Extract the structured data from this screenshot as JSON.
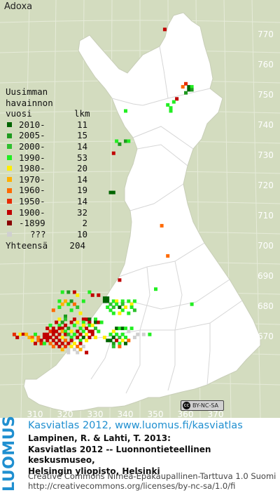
{
  "title": "Adoxa",
  "legend": {
    "header": [
      "Uusimman",
      "havainnon",
      "vuosi"
    ],
    "count_header": "lkm",
    "rows": [
      {
        "label": "2010-",
        "count": "11",
        "color": "#006400"
      },
      {
        "label": "2005-",
        "count": "15",
        "color": "#1f9a1f"
      },
      {
        "label": "2000-",
        "count": "14",
        "color": "#2fc02f"
      },
      {
        "label": "1990-",
        "count": "53",
        "color": "#22ee22"
      },
      {
        "label": "1980-",
        "count": "20",
        "color": "#ffee00"
      },
      {
        "label": "1970-",
        "count": "14",
        "color": "#ffb000"
      },
      {
        "label": "1960-",
        "count": "19",
        "color": "#ff6a00"
      },
      {
        "label": "1950-",
        "count": "14",
        "color": "#e82a00"
      },
      {
        "label": "1900-",
        "count": "32",
        "color": "#c00000"
      },
      {
        "label": "-1899",
        "count": "2",
        "color": "#8a0000"
      },
      {
        "label": "???",
        "count": "10",
        "color": "#d0d0d0"
      }
    ],
    "total_label": "Yhteensä",
    "total_count": "204"
  },
  "y_ticks": [
    "770",
    "760",
    "750",
    "740",
    "730",
    "720",
    "710",
    "700",
    "690",
    "680",
    "670"
  ],
  "x_ticks": [
    "310",
    "320",
    "330",
    "340",
    "350",
    "360",
    "370"
  ],
  "license_badge": "BY-NC-SA",
  "footer": {
    "logo": "LUOMUS",
    "line1": "Kasviatlas 2012, www.luomus.fi/kasviatlas",
    "line2": "Lampinen, R. & Lahti, T. 2013:",
    "line3": "Kasviatlas 2012 -- Luonnontieteellinen keskusmuseo,",
    "line4": "Helsingin yliopisto, Helsinki",
    "line5": "Creative Commons Nimeä-Epäkaupallinen-Tarttuva 1.0 Suomi",
    "line6": "http://creativecommons.org/licenses/by-nc-sa/1.0/fi"
  },
  "observations": [
    {
      "e": 353,
      "n": 772,
      "c": "#c00000"
    },
    {
      "e": 359,
      "n": 753,
      "c": "#ff6a00"
    },
    {
      "e": 360,
      "n": 754,
      "c": "#e82a00"
    },
    {
      "e": 361,
      "n": 753,
      "c": "#006400"
    },
    {
      "e": 362,
      "n": 753,
      "c": "#22ee22"
    },
    {
      "e": 361,
      "n": 752,
      "c": "#006400"
    },
    {
      "e": 362,
      "n": 752,
      "c": "#1f9a1f"
    },
    {
      "e": 360,
      "n": 751,
      "c": "#1f9a1f"
    },
    {
      "e": 357,
      "n": 749,
      "c": "#c00000"
    },
    {
      "e": 356,
      "n": 748,
      "c": "#22ee22"
    },
    {
      "e": 354,
      "n": 747,
      "c": "#22ee22"
    },
    {
      "e": 355,
      "n": 746,
      "c": "#22ee22"
    },
    {
      "e": 355,
      "n": 745,
      "c": "#22ee22"
    },
    {
      "e": 340,
      "n": 745,
      "c": "#22ee22"
    },
    {
      "e": 337,
      "n": 735,
      "c": "#22ee22"
    },
    {
      "e": 340,
      "n": 735,
      "c": "#1f9a1f"
    },
    {
      "e": 341,
      "n": 735,
      "c": "#22ee22"
    },
    {
      "e": 338,
      "n": 734,
      "c": "#1f9a1f"
    },
    {
      "e": 336,
      "n": 731,
      "c": "#c00000"
    },
    {
      "e": 335,
      "n": 718,
      "c": "#006400"
    },
    {
      "e": 336,
      "n": 718,
      "c": "#006400"
    },
    {
      "e": 352,
      "n": 707,
      "c": "#ff6a00"
    },
    {
      "e": 354,
      "n": 697,
      "c": "#ff6a00"
    },
    {
      "e": 338,
      "n": 689,
      "c": "#c00000"
    },
    {
      "e": 350,
      "n": 686,
      "c": "#22ee22"
    },
    {
      "e": 319,
      "n": 685,
      "c": "#22ee22"
    },
    {
      "e": 321,
      "n": 685,
      "c": "#1f9a1f"
    },
    {
      "e": 323,
      "n": 685,
      "c": "#c00000"
    },
    {
      "e": 324,
      "n": 684,
      "c": "#ffee00"
    },
    {
      "e": 328,
      "n": 685,
      "c": "#22ee22"
    },
    {
      "e": 329,
      "n": 684,
      "c": "#c00000"
    },
    {
      "e": 331,
      "n": 684,
      "c": "#c00000"
    },
    {
      "e": 333,
      "n": 683,
      "c": "#006400"
    },
    {
      "e": 334,
      "n": 683,
      "c": "#006400"
    },
    {
      "e": 333,
      "n": 682,
      "c": "#006400"
    },
    {
      "e": 334,
      "n": 682,
      "c": "#006400"
    },
    {
      "e": 318,
      "n": 682,
      "c": "#22ee22"
    },
    {
      "e": 320,
      "n": 682,
      "c": "#ffb000"
    },
    {
      "e": 322,
      "n": 682,
      "c": "#1f9a1f"
    },
    {
      "e": 326,
      "n": 682,
      "c": "#22ee22"
    },
    {
      "e": 336,
      "n": 682,
      "c": "#22ee22"
    },
    {
      "e": 337,
      "n": 682,
      "c": "#ffee00"
    },
    {
      "e": 339,
      "n": 682,
      "c": "#22ee22"
    },
    {
      "e": 341,
      "n": 682,
      "c": "#22ee22"
    },
    {
      "e": 343,
      "n": 682,
      "c": "#22ee22"
    },
    {
      "e": 319,
      "n": 681,
      "c": "#ffb000"
    },
    {
      "e": 321,
      "n": 681,
      "c": "#22ee22"
    },
    {
      "e": 323,
      "n": 681,
      "c": "#ff6a00"
    },
    {
      "e": 335,
      "n": 681,
      "c": "#2fc02f"
    },
    {
      "e": 337,
      "n": 681,
      "c": "#22ee22"
    },
    {
      "e": 339,
      "n": 681,
      "c": "#2fc02f"
    },
    {
      "e": 342,
      "n": 681,
      "c": "#ffee00"
    },
    {
      "e": 362,
      "n": 681,
      "c": "#22ee22"
    },
    {
      "e": 318,
      "n": 680,
      "c": "#22ee22"
    },
    {
      "e": 324,
      "n": 680,
      "c": "#2fc02f"
    },
    {
      "e": 334,
      "n": 680,
      "c": "#22ee22"
    },
    {
      "e": 336,
      "n": 680,
      "c": "#2fc02f"
    },
    {
      "e": 338,
      "n": 680,
      "c": "#006400"
    },
    {
      "e": 340,
      "n": 680,
      "c": "#ffee00"
    },
    {
      "e": 342,
      "n": 680,
      "c": "#22ee22"
    },
    {
      "e": 316,
      "n": 679,
      "c": "#ff6a00"
    },
    {
      "e": 322,
      "n": 679,
      "c": "#22ee22"
    },
    {
      "e": 335,
      "n": 679,
      "c": "#22ee22"
    },
    {
      "e": 339,
      "n": 679,
      "c": "#22ee22"
    },
    {
      "e": 343,
      "n": 679,
      "c": "#2fc02f"
    },
    {
      "e": 325,
      "n": 678,
      "c": "#ffee00"
    },
    {
      "e": 336,
      "n": 678,
      "c": "#22ee22"
    },
    {
      "e": 338,
      "n": 678,
      "c": "#ffee00"
    },
    {
      "e": 341,
      "n": 678,
      "c": "#22ee22"
    },
    {
      "e": 320,
      "n": 677,
      "c": "#1f9a1f"
    },
    {
      "e": 318,
      "n": 676,
      "c": "#ffee00"
    },
    {
      "e": 320,
      "n": 676,
      "c": "#2fc02f"
    },
    {
      "e": 323,
      "n": 676,
      "c": "#c00000"
    },
    {
      "e": 326,
      "n": 676,
      "c": "#c00000"
    },
    {
      "e": 327,
      "n": 676,
      "c": "#c00000"
    },
    {
      "e": 328,
      "n": 676,
      "c": "#006400"
    },
    {
      "e": 330,
      "n": 676,
      "c": "#22ee22"
    },
    {
      "e": 317,
      "n": 675,
      "c": "#c00000"
    },
    {
      "e": 319,
      "n": 675,
      "c": "#1f9a1f"
    },
    {
      "e": 322,
      "n": 675,
      "c": "#c00000"
    },
    {
      "e": 324,
      "n": 675,
      "c": "#ffee00"
    },
    {
      "e": 326,
      "n": 675,
      "c": "#22ee22"
    },
    {
      "e": 328,
      "n": 675,
      "c": "#c00000"
    },
    {
      "e": 330,
      "n": 675,
      "c": "#006400"
    },
    {
      "e": 331,
      "n": 675,
      "c": "#c00000"
    },
    {
      "e": 332,
      "n": 675,
      "c": "#22ee22"
    },
    {
      "e": 315,
      "n": 674,
      "c": "#22ee22"
    },
    {
      "e": 318,
      "n": 674,
      "c": "#22ee22"
    },
    {
      "e": 320,
      "n": 674,
      "c": "#c00000"
    },
    {
      "e": 323,
      "n": 674,
      "c": "#22ee22"
    },
    {
      "e": 326,
      "n": 674,
      "c": "#ffee00"
    },
    {
      "e": 328,
      "n": 674,
      "c": "#22ee22"
    },
    {
      "e": 329,
      "n": 674,
      "c": "#ffee00"
    },
    {
      "e": 314,
      "n": 673,
      "c": "#c00000"
    },
    {
      "e": 316,
      "n": 673,
      "c": "#c00000"
    },
    {
      "e": 318,
      "n": 673,
      "c": "#c00000"
    },
    {
      "e": 319,
      "n": 673,
      "c": "#c00000"
    },
    {
      "e": 321,
      "n": 673,
      "c": "#1f9a1f"
    },
    {
      "e": 325,
      "n": 673,
      "c": "#22ee22"
    },
    {
      "e": 327,
      "n": 673,
      "c": "#c00000"
    },
    {
      "e": 330,
      "n": 673,
      "c": "#2fc02f"
    },
    {
      "e": 337,
      "n": 673,
      "c": "#006400"
    },
    {
      "e": 338,
      "n": 673,
      "c": "#22ee22"
    },
    {
      "e": 339,
      "n": 673,
      "c": "#006400"
    },
    {
      "e": 340,
      "n": 673,
      "c": "#22ee22"
    },
    {
      "e": 342,
      "n": 673,
      "c": "#22ee22"
    },
    {
      "e": 315,
      "n": 672,
      "c": "#e82a00"
    },
    {
      "e": 316,
      "n": 672,
      "c": "#c00000"
    },
    {
      "e": 317,
      "n": 672,
      "c": "#c00000"
    },
    {
      "e": 319,
      "n": 672,
      "c": "#ffb000"
    },
    {
      "e": 320,
      "n": 672,
      "c": "#22ee22"
    },
    {
      "e": 322,
      "n": 672,
      "c": "#ffee00"
    },
    {
      "e": 324,
      "n": 672,
      "c": "#c00000"
    },
    {
      "e": 326,
      "n": 672,
      "c": "#22ee22"
    },
    {
      "e": 328,
      "n": 672,
      "c": "#c00000"
    },
    {
      "e": 329,
      "n": 672,
      "c": "#c00000"
    },
    {
      "e": 331,
      "n": 672,
      "c": "#22ee22"
    },
    {
      "e": 341,
      "n": 672,
      "c": "#d0d0d0"
    },
    {
      "e": 336,
      "n": 672,
      "c": "#ffee00"
    },
    {
      "e": 303,
      "n": 671,
      "c": "#e82a00"
    },
    {
      "e": 305,
      "n": 671,
      "c": "#ffee00"
    },
    {
      "e": 306,
      "n": 671,
      "c": "#c00000"
    },
    {
      "e": 307,
      "n": 671,
      "c": "#ffb000"
    },
    {
      "e": 310,
      "n": 671,
      "c": "#22ee22"
    },
    {
      "e": 313,
      "n": 671,
      "c": "#c00000"
    },
    {
      "e": 314,
      "n": 671,
      "c": "#c00000"
    },
    {
      "e": 316,
      "n": 671,
      "c": "#c00000"
    },
    {
      "e": 318,
      "n": 671,
      "c": "#c00000"
    },
    {
      "e": 320,
      "n": 671,
      "c": "#c00000"
    },
    {
      "e": 321,
      "n": 671,
      "c": "#2fc02f"
    },
    {
      "e": 323,
      "n": 671,
      "c": "#22ee22"
    },
    {
      "e": 325,
      "n": 671,
      "c": "#c00000"
    },
    {
      "e": 327,
      "n": 671,
      "c": "#ffee00"
    },
    {
      "e": 329,
      "n": 671,
      "c": "#c00000"
    },
    {
      "e": 335,
      "n": 671,
      "c": "#22ee22"
    },
    {
      "e": 337,
      "n": 671,
      "c": "#22ee22"
    },
    {
      "e": 339,
      "n": 671,
      "c": "#22ee22"
    },
    {
      "e": 344,
      "n": 671,
      "c": "#d0d0d0"
    },
    {
      "e": 346,
      "n": 671,
      "c": "#d0d0d0"
    },
    {
      "e": 348,
      "n": 671,
      "c": "#22ee22"
    },
    {
      "e": 304,
      "n": 670,
      "c": "#c00000"
    },
    {
      "e": 306,
      "n": 670,
      "c": "#d0d0d0"
    },
    {
      "e": 308,
      "n": 670,
      "c": "#ffb000"
    },
    {
      "e": 309,
      "n": 670,
      "c": "#ff6a00"
    },
    {
      "e": 311,
      "n": 670,
      "c": "#ff6a00"
    },
    {
      "e": 313,
      "n": 670,
      "c": "#c00000"
    },
    {
      "e": 314,
      "n": 670,
      "c": "#c00000"
    },
    {
      "e": 315,
      "n": 670,
      "c": "#c00000"
    },
    {
      "e": 317,
      "n": 670,
      "c": "#c00000"
    },
    {
      "e": 319,
      "n": 670,
      "c": "#ffee00"
    },
    {
      "e": 322,
      "n": 670,
      "c": "#22ee22"
    },
    {
      "e": 324,
      "n": 670,
      "c": "#c00000"
    },
    {
      "e": 326,
      "n": 670,
      "c": "#006400"
    },
    {
      "e": 328,
      "n": 670,
      "c": "#c00000"
    },
    {
      "e": 330,
      "n": 670,
      "c": "#ffee00"
    },
    {
      "e": 333,
      "n": 670,
      "c": "#ffee00"
    },
    {
      "e": 336,
      "n": 670,
      "c": "#006400"
    },
    {
      "e": 338,
      "n": 670,
      "c": "#2fc02f"
    },
    {
      "e": 340,
      "n": 670,
      "c": "#22ee22"
    },
    {
      "e": 343,
      "n": 670,
      "c": "#d0d0d0"
    },
    {
      "e": 309,
      "n": 669,
      "c": "#ffee00"
    },
    {
      "e": 311,
      "n": 669,
      "c": "#ff6a00"
    },
    {
      "e": 312,
      "n": 669,
      "c": "#c00000"
    },
    {
      "e": 314,
      "n": 669,
      "c": "#c00000"
    },
    {
      "e": 316,
      "n": 669,
      "c": "#c00000"
    },
    {
      "e": 318,
      "n": 669,
      "c": "#c00000"
    },
    {
      "e": 320,
      "n": 669,
      "c": "#ff6a00"
    },
    {
      "e": 322,
      "n": 669,
      "c": "#c00000"
    },
    {
      "e": 325,
      "n": 669,
      "c": "#22ee22"
    },
    {
      "e": 327,
      "n": 669,
      "c": "#ffee00"
    },
    {
      "e": 334,
      "n": 669,
      "c": "#006400"
    },
    {
      "e": 335,
      "n": 669,
      "c": "#006400"
    },
    {
      "e": 337,
      "n": 669,
      "c": "#c00000"
    },
    {
      "e": 339,
      "n": 669,
      "c": "#ffee00"
    },
    {
      "e": 341,
      "n": 669,
      "c": "#ff6a00"
    },
    {
      "e": 310,
      "n": 668,
      "c": "#c00000"
    },
    {
      "e": 312,
      "n": 668,
      "c": "#e82a00"
    },
    {
      "e": 313,
      "n": 668,
      "c": "#22ee22"
    },
    {
      "e": 315,
      "n": 668,
      "c": "#ff6a00"
    },
    {
      "e": 317,
      "n": 668,
      "c": "#c00000"
    },
    {
      "e": 319,
      "n": 668,
      "c": "#c00000"
    },
    {
      "e": 321,
      "n": 668,
      "c": "#c00000"
    },
    {
      "e": 323,
      "n": 668,
      "c": "#ffee00"
    },
    {
      "e": 325,
      "n": 668,
      "c": "#c00000"
    },
    {
      "e": 336,
      "n": 668,
      "c": "#1f9a1f"
    },
    {
      "e": 338,
      "n": 668,
      "c": "#22ee22"
    },
    {
      "e": 340,
      "n": 668,
      "c": "#006400"
    },
    {
      "e": 316,
      "n": 667,
      "c": "#ff6a00"
    },
    {
      "e": 318,
      "n": 667,
      "c": "#c00000"
    },
    {
      "e": 320,
      "n": 667,
      "c": "#e82a00"
    },
    {
      "e": 322,
      "n": 667,
      "c": "#ffee00"
    },
    {
      "e": 324,
      "n": 667,
      "c": "#ff6a00"
    },
    {
      "e": 326,
      "n": 667,
      "c": "#d0d0d0"
    },
    {
      "e": 336,
      "n": 667,
      "c": "#2fc02f"
    },
    {
      "e": 338,
      "n": 667,
      "c": "#ff6a00"
    },
    {
      "e": 319,
      "n": 666,
      "c": "#ffb000"
    },
    {
      "e": 321,
      "n": 666,
      "c": "#d0d0d0"
    },
    {
      "e": 323,
      "n": 666,
      "c": "#d0d0d0"
    },
    {
      "e": 325,
      "n": 666,
      "c": "#ffb000"
    },
    {
      "e": 321,
      "n": 665,
      "c": "#d0d0d0"
    },
    {
      "e": 324,
      "n": 665,
      "c": "#d0d0d0"
    },
    {
      "e": 327,
      "n": 665,
      "c": "#c00000"
    }
  ]
}
